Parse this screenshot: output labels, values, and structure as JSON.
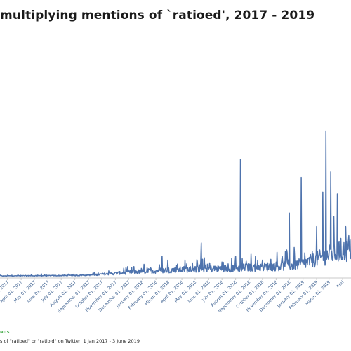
{
  "chart_data": {
    "type": "line",
    "title": "multiplying mentions of `ratioed', 2017 - 2019",
    "source": "NDS",
    "caption": "s of \"ratioed\" or \"ratio'd\" on Twitter, 1 Jan 2017 - 3 June 2019",
    "line_color": "#4e73ad",
    "axis_color": "#c8c8c8",
    "tick_label_color": "#3b5f8f",
    "grid": false,
    "x_range": [
      "2017-02-12",
      "2019-04-20"
    ],
    "x_ticks": [
      {
        "date": "2017-03-01",
        "label": "01, 2017"
      },
      {
        "date": "2017-04-01",
        "label": "April 01, 2017"
      },
      {
        "date": "2017-05-01",
        "label": "May 01, 2017"
      },
      {
        "date": "2017-06-01",
        "label": "June 01, 2017"
      },
      {
        "date": "2017-07-01",
        "label": "July 01, 2017"
      },
      {
        "date": "2017-08-01",
        "label": "August 01, 2017"
      },
      {
        "date": "2017-09-01",
        "label": "September 01, 2017"
      },
      {
        "date": "2017-10-01",
        "label": "October 01, 2017"
      },
      {
        "date": "2017-11-01",
        "label": "November 01, 2017"
      },
      {
        "date": "2017-12-01",
        "label": "December 01, 2017"
      },
      {
        "date": "2018-01-01",
        "label": "January 01, 2018"
      },
      {
        "date": "2018-02-01",
        "label": "February 01, 2018"
      },
      {
        "date": "2018-03-01",
        "label": "March 01, 2018"
      },
      {
        "date": "2018-04-01",
        "label": "April 01, 2018"
      },
      {
        "date": "2018-05-01",
        "label": "May 01, 2018"
      },
      {
        "date": "2018-06-01",
        "label": "June 01, 2018"
      },
      {
        "date": "2018-07-01",
        "label": "July 01, 2018"
      },
      {
        "date": "2018-08-01",
        "label": "August 01, 2018"
      },
      {
        "date": "2018-09-01",
        "label": "September 01, 2018"
      },
      {
        "date": "2018-10-01",
        "label": "October 01, 2018"
      },
      {
        "date": "2018-11-01",
        "label": "November 01, 2018"
      },
      {
        "date": "2018-12-01",
        "label": "December 01, 2018"
      },
      {
        "date": "2019-01-01",
        "label": "January 01, 2019"
      },
      {
        "date": "2019-02-01",
        "label": "February 01, 2019"
      },
      {
        "date": "2019-03-01",
        "label": "March 01, 2019"
      },
      {
        "date": "2019-04-01",
        "label": "Apri"
      }
    ],
    "baseline": [
      [
        "2017-02-12",
        1.5
      ],
      [
        "2017-04-01",
        1.8
      ],
      [
        "2017-06-01",
        2
      ],
      [
        "2017-08-01",
        2.5
      ],
      [
        "2017-09-15",
        4
      ],
      [
        "2017-10-15",
        6
      ],
      [
        "2017-11-15",
        8
      ],
      [
        "2017-12-15",
        10
      ],
      [
        "2018-01-15",
        12
      ],
      [
        "2018-03-01",
        14
      ],
      [
        "2018-04-15",
        16
      ],
      [
        "2018-06-01",
        17
      ],
      [
        "2018-07-15",
        18
      ],
      [
        "2018-09-01",
        20
      ],
      [
        "2018-10-15",
        22
      ],
      [
        "2018-12-01",
        24
      ],
      [
        "2019-01-01",
        28
      ],
      [
        "2019-02-01",
        38
      ],
      [
        "2019-03-01",
        48
      ],
      [
        "2019-04-01",
        55
      ],
      [
        "2019-04-20",
        58
      ]
    ],
    "spikes": [
      {
        "date": "2017-03-25",
        "value": 4
      },
      {
        "date": "2017-05-17",
        "value": 6
      },
      {
        "date": "2017-10-20",
        "value": 8
      },
      {
        "date": "2017-11-26",
        "value": 16
      },
      {
        "date": "2017-12-13",
        "value": 22
      },
      {
        "date": "2017-12-30",
        "value": 18
      },
      {
        "date": "2018-01-20",
        "value": 20
      },
      {
        "date": "2018-02-15",
        "value": 45
      },
      {
        "date": "2018-02-28",
        "value": 36
      },
      {
        "date": "2018-03-20",
        "value": 24
      },
      {
        "date": "2018-04-12",
        "value": 28
      },
      {
        "date": "2018-04-25",
        "value": 30
      },
      {
        "date": "2018-05-15",
        "value": 74
      },
      {
        "date": "2018-06-03",
        "value": 30
      },
      {
        "date": "2018-07-01",
        "value": 32
      },
      {
        "date": "2018-07-15",
        "value": 28
      },
      {
        "date": "2018-08-12",
        "value": 258
      },
      {
        "date": "2018-08-25",
        "value": 34
      },
      {
        "date": "2018-09-20",
        "value": 36
      },
      {
        "date": "2018-10-20",
        "value": 38
      },
      {
        "date": "2018-11-15",
        "value": 44
      },
      {
        "date": "2018-12-01",
        "value": 140
      },
      {
        "date": "2018-12-12",
        "value": 64
      },
      {
        "date": "2018-12-28",
        "value": 218
      },
      {
        "date": "2019-01-05",
        "value": 52
      },
      {
        "date": "2019-01-22",
        "value": 56
      },
      {
        "date": "2019-02-01",
        "value": 110
      },
      {
        "date": "2019-02-15",
        "value": 186
      },
      {
        "date": "2019-02-22",
        "value": 320
      },
      {
        "date": "2019-03-05",
        "value": 230
      },
      {
        "date": "2019-03-12",
        "value": 132
      },
      {
        "date": "2019-03-20",
        "value": 182
      },
      {
        "date": "2019-03-28",
        "value": 84
      },
      {
        "date": "2019-04-08",
        "value": 110
      },
      {
        "date": "2019-04-15",
        "value": 90
      }
    ],
    "y_max": 330
  }
}
